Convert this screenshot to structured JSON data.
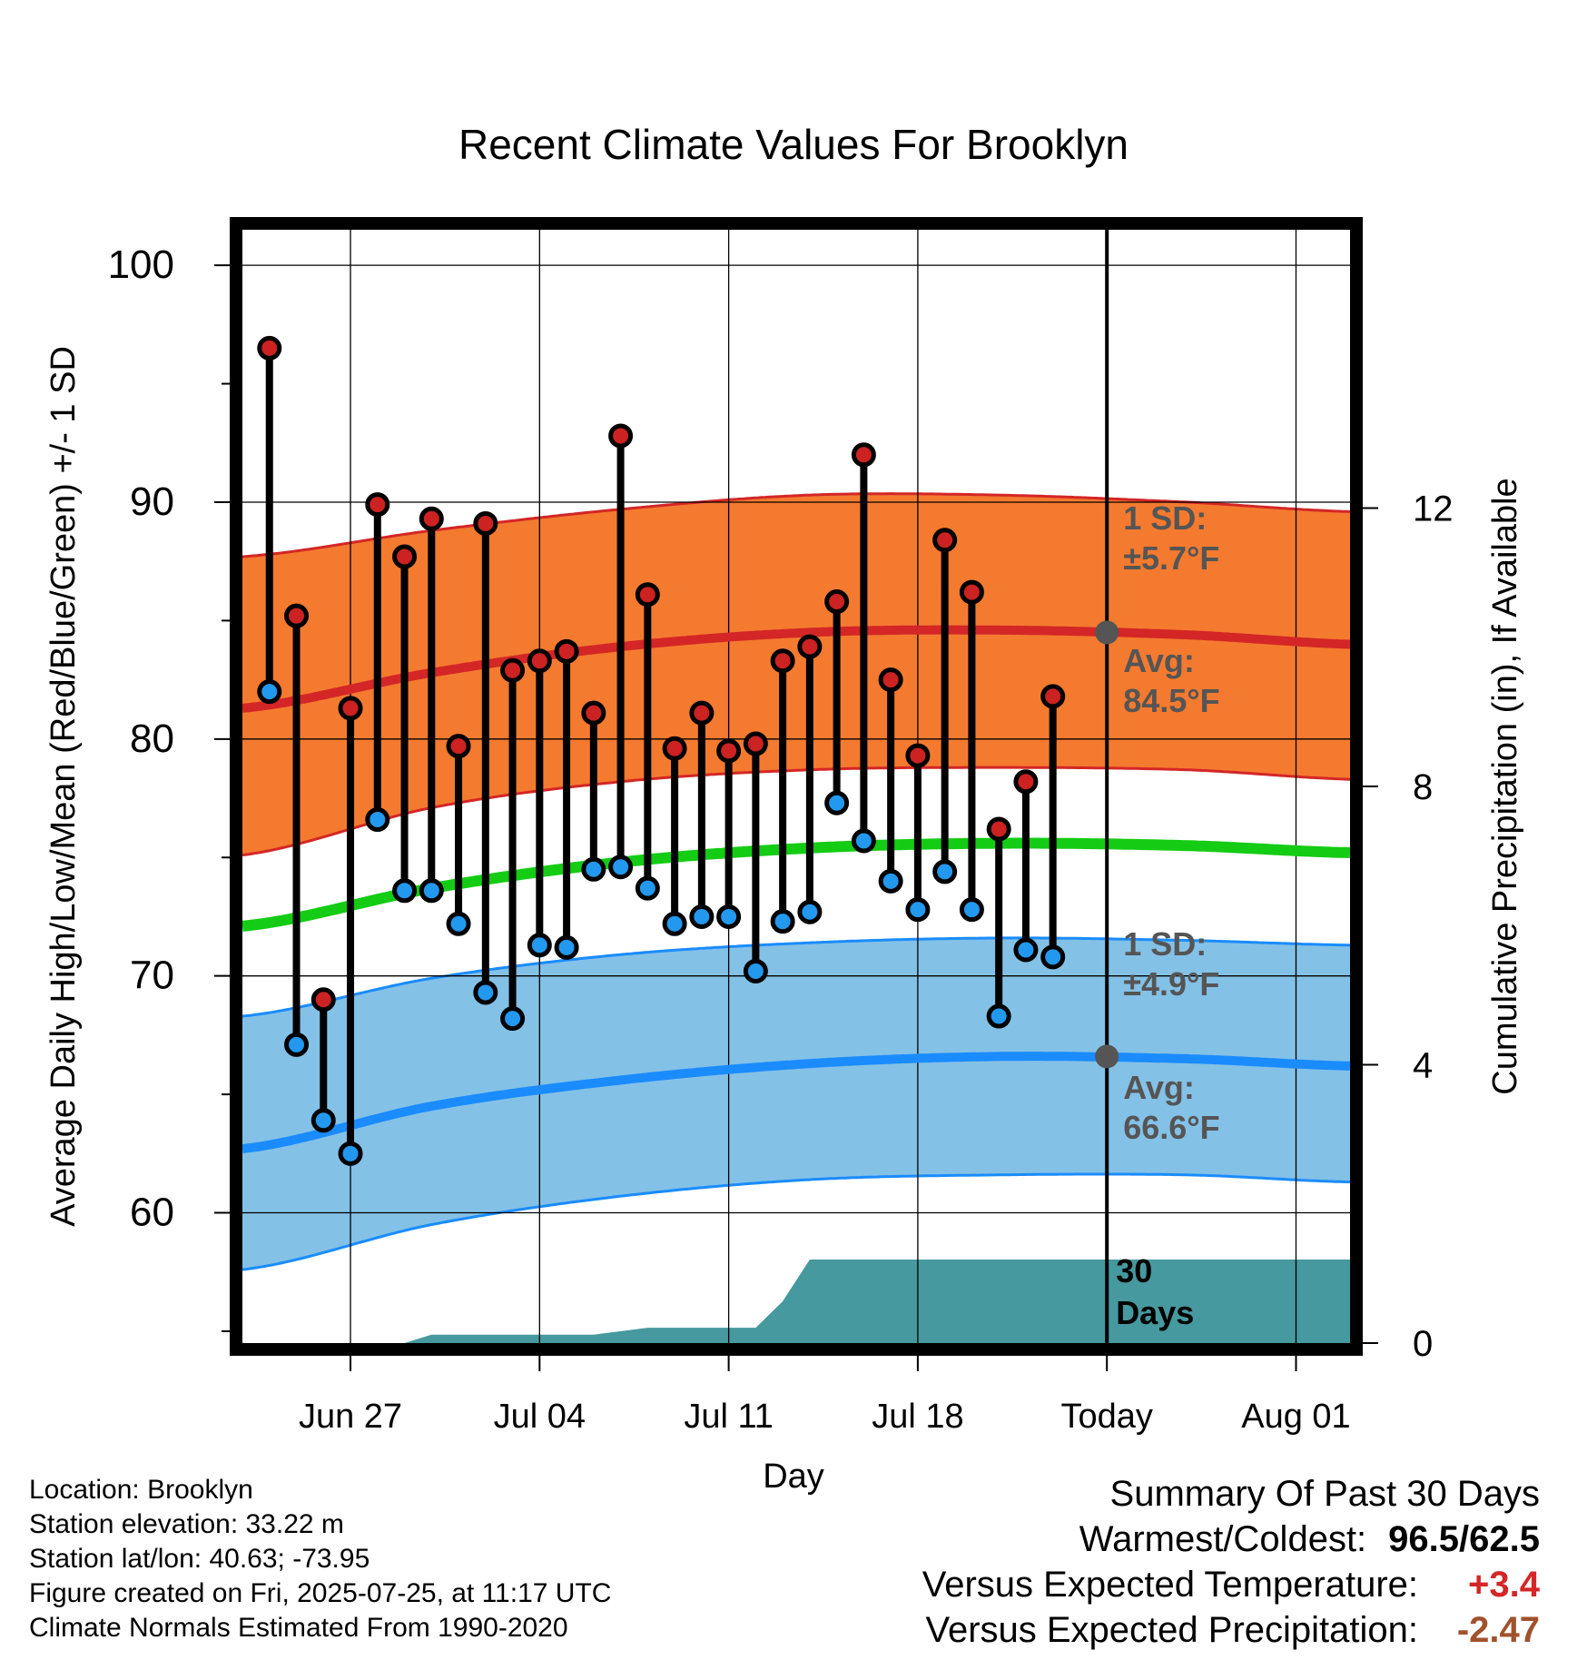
{
  "chart_data": {
    "type": "line",
    "title": "Recent Climate Values For Brooklyn",
    "xlabel": "Day",
    "ylabel": "Average Daily High/Low/Mean (Red/Blue/Green) +/- 1 SD",
    "y2label": "Cumulative Precipitation (in), If Available",
    "ylim": [
      54.5,
      101.5
    ],
    "y2lim": [
      0,
      16
    ],
    "yticks": [
      "60",
      "70",
      "80",
      "90",
      "100"
    ],
    "y2ticks": [
      "0",
      "4",
      "8",
      "12"
    ],
    "x_tick_labels": [
      "Jun 27",
      "Jul 04",
      "Jul 11",
      "Jul 18",
      "Today",
      "Aug 01"
    ],
    "x_range": [
      "2025-06-23",
      "2025-08-03"
    ],
    "today": "2025-07-25",
    "today_label": "30 Days",
    "high_sd_label": [
      "1 SD:",
      "±5.7°F"
    ],
    "high_avg_label": [
      "Avg:",
      "84.5°F"
    ],
    "low_sd_label": [
      "1 SD:",
      "±4.9°F"
    ],
    "low_avg_label": [
      "Avg:",
      "66.6°F"
    ],
    "colors": {
      "high_band": "#f47a2f",
      "high_line": "#d42626",
      "low_band": "#84c1e6",
      "low_line": "#1a8cff",
      "mean_line": "#14cc14",
      "precip": "#46999e",
      "high_marker": "#cc2222",
      "low_marker": "#2299ee",
      "label_gray": "#555555"
    },
    "normals": {
      "dates": [
        "2025-06-23",
        "2025-06-30",
        "2025-07-07",
        "2025-07-14",
        "2025-07-21",
        "2025-07-28",
        "2025-08-03"
      ],
      "high_avg": [
        81.3,
        82.8,
        83.9,
        84.5,
        84.6,
        84.4,
        84.0
      ],
      "high_upper": [
        87.7,
        88.8,
        89.7,
        90.3,
        90.3,
        90.0,
        89.6
      ],
      "high_lower": [
        75.1,
        77.1,
        78.2,
        78.7,
        78.8,
        78.7,
        78.3
      ],
      "low_avg": [
        62.7,
        64.5,
        65.6,
        66.3,
        66.6,
        66.5,
        66.2
      ],
      "low_upper": [
        68.3,
        69.9,
        70.9,
        71.4,
        71.6,
        71.5,
        71.3
      ],
      "low_lower": [
        57.6,
        59.5,
        60.7,
        61.4,
        61.6,
        61.6,
        61.3
      ],
      "mean": [
        72.1,
        73.7,
        74.8,
        75.4,
        75.6,
        75.5,
        75.2
      ]
    },
    "observed": {
      "dates": [
        "2025-06-24",
        "2025-06-25",
        "2025-06-26",
        "2025-06-27",
        "2025-06-28",
        "2025-06-29",
        "2025-06-30",
        "2025-07-01",
        "2025-07-02",
        "2025-07-03",
        "2025-07-04",
        "2025-07-05",
        "2025-07-06",
        "2025-07-07",
        "2025-07-08",
        "2025-07-09",
        "2025-07-10",
        "2025-07-11",
        "2025-07-12",
        "2025-07-13",
        "2025-07-14",
        "2025-07-15",
        "2025-07-16",
        "2025-07-17",
        "2025-07-18",
        "2025-07-19",
        "2025-07-20",
        "2025-07-21",
        "2025-07-22",
        "2025-07-23",
        "2025-07-24"
      ],
      "high": [
        96.5,
        85.2,
        69.0,
        81.3,
        89.9,
        87.7,
        89.3,
        79.7,
        89.1,
        82.9,
        83.3,
        83.7,
        81.1,
        92.8,
        86.1,
        79.6,
        81.1,
        79.5,
        79.8,
        83.3,
        83.9,
        85.8,
        92.0,
        82.5,
        79.3,
        88.4,
        86.2,
        76.2,
        78.2,
        81.8,
        null
      ],
      "low": [
        82.0,
        67.1,
        63.9,
        62.5,
        76.6,
        73.6,
        73.6,
        72.2,
        69.3,
        68.2,
        71.3,
        71.2,
        74.5,
        74.6,
        73.7,
        72.2,
        72.5,
        72.5,
        70.2,
        72.3,
        72.7,
        77.3,
        75.7,
        74.0,
        72.8,
        74.4,
        72.8,
        68.3,
        71.1,
        70.8,
        null
      ]
    },
    "precipitation": {
      "dates": [
        "2025-06-23",
        "2025-06-29",
        "2025-06-30",
        "2025-07-06",
        "2025-07-08",
        "2025-07-12",
        "2025-07-13",
        "2025-07-14",
        "2025-08-03"
      ],
      "cumulative": [
        0.0,
        0.0,
        0.12,
        0.12,
        0.22,
        0.22,
        0.6,
        1.2,
        1.2
      ]
    }
  },
  "summary": {
    "title": "Summary Of Past 30 Days",
    "warm_cold_label": "Warmest/Coldest:",
    "warm_cold_value": "96.5/62.5",
    "temp_label": "Versus Expected Temperature:",
    "temp_value": "+3.4",
    "temp_color": "#d42626",
    "precip_label": "Versus Expected Precipitation:",
    "precip_value": "-2.47",
    "precip_color": "#a0522d"
  },
  "station": {
    "location": "Location: Brooklyn",
    "elevation": "Station elevation: 33.22 m",
    "latlon": "Station lat/lon: 40.63; -73.95",
    "created": "Figure created on Fri, 2025-07-25, at 11:17 UTC",
    "normals": "Climate Normals Estimated From 1990-2020"
  }
}
